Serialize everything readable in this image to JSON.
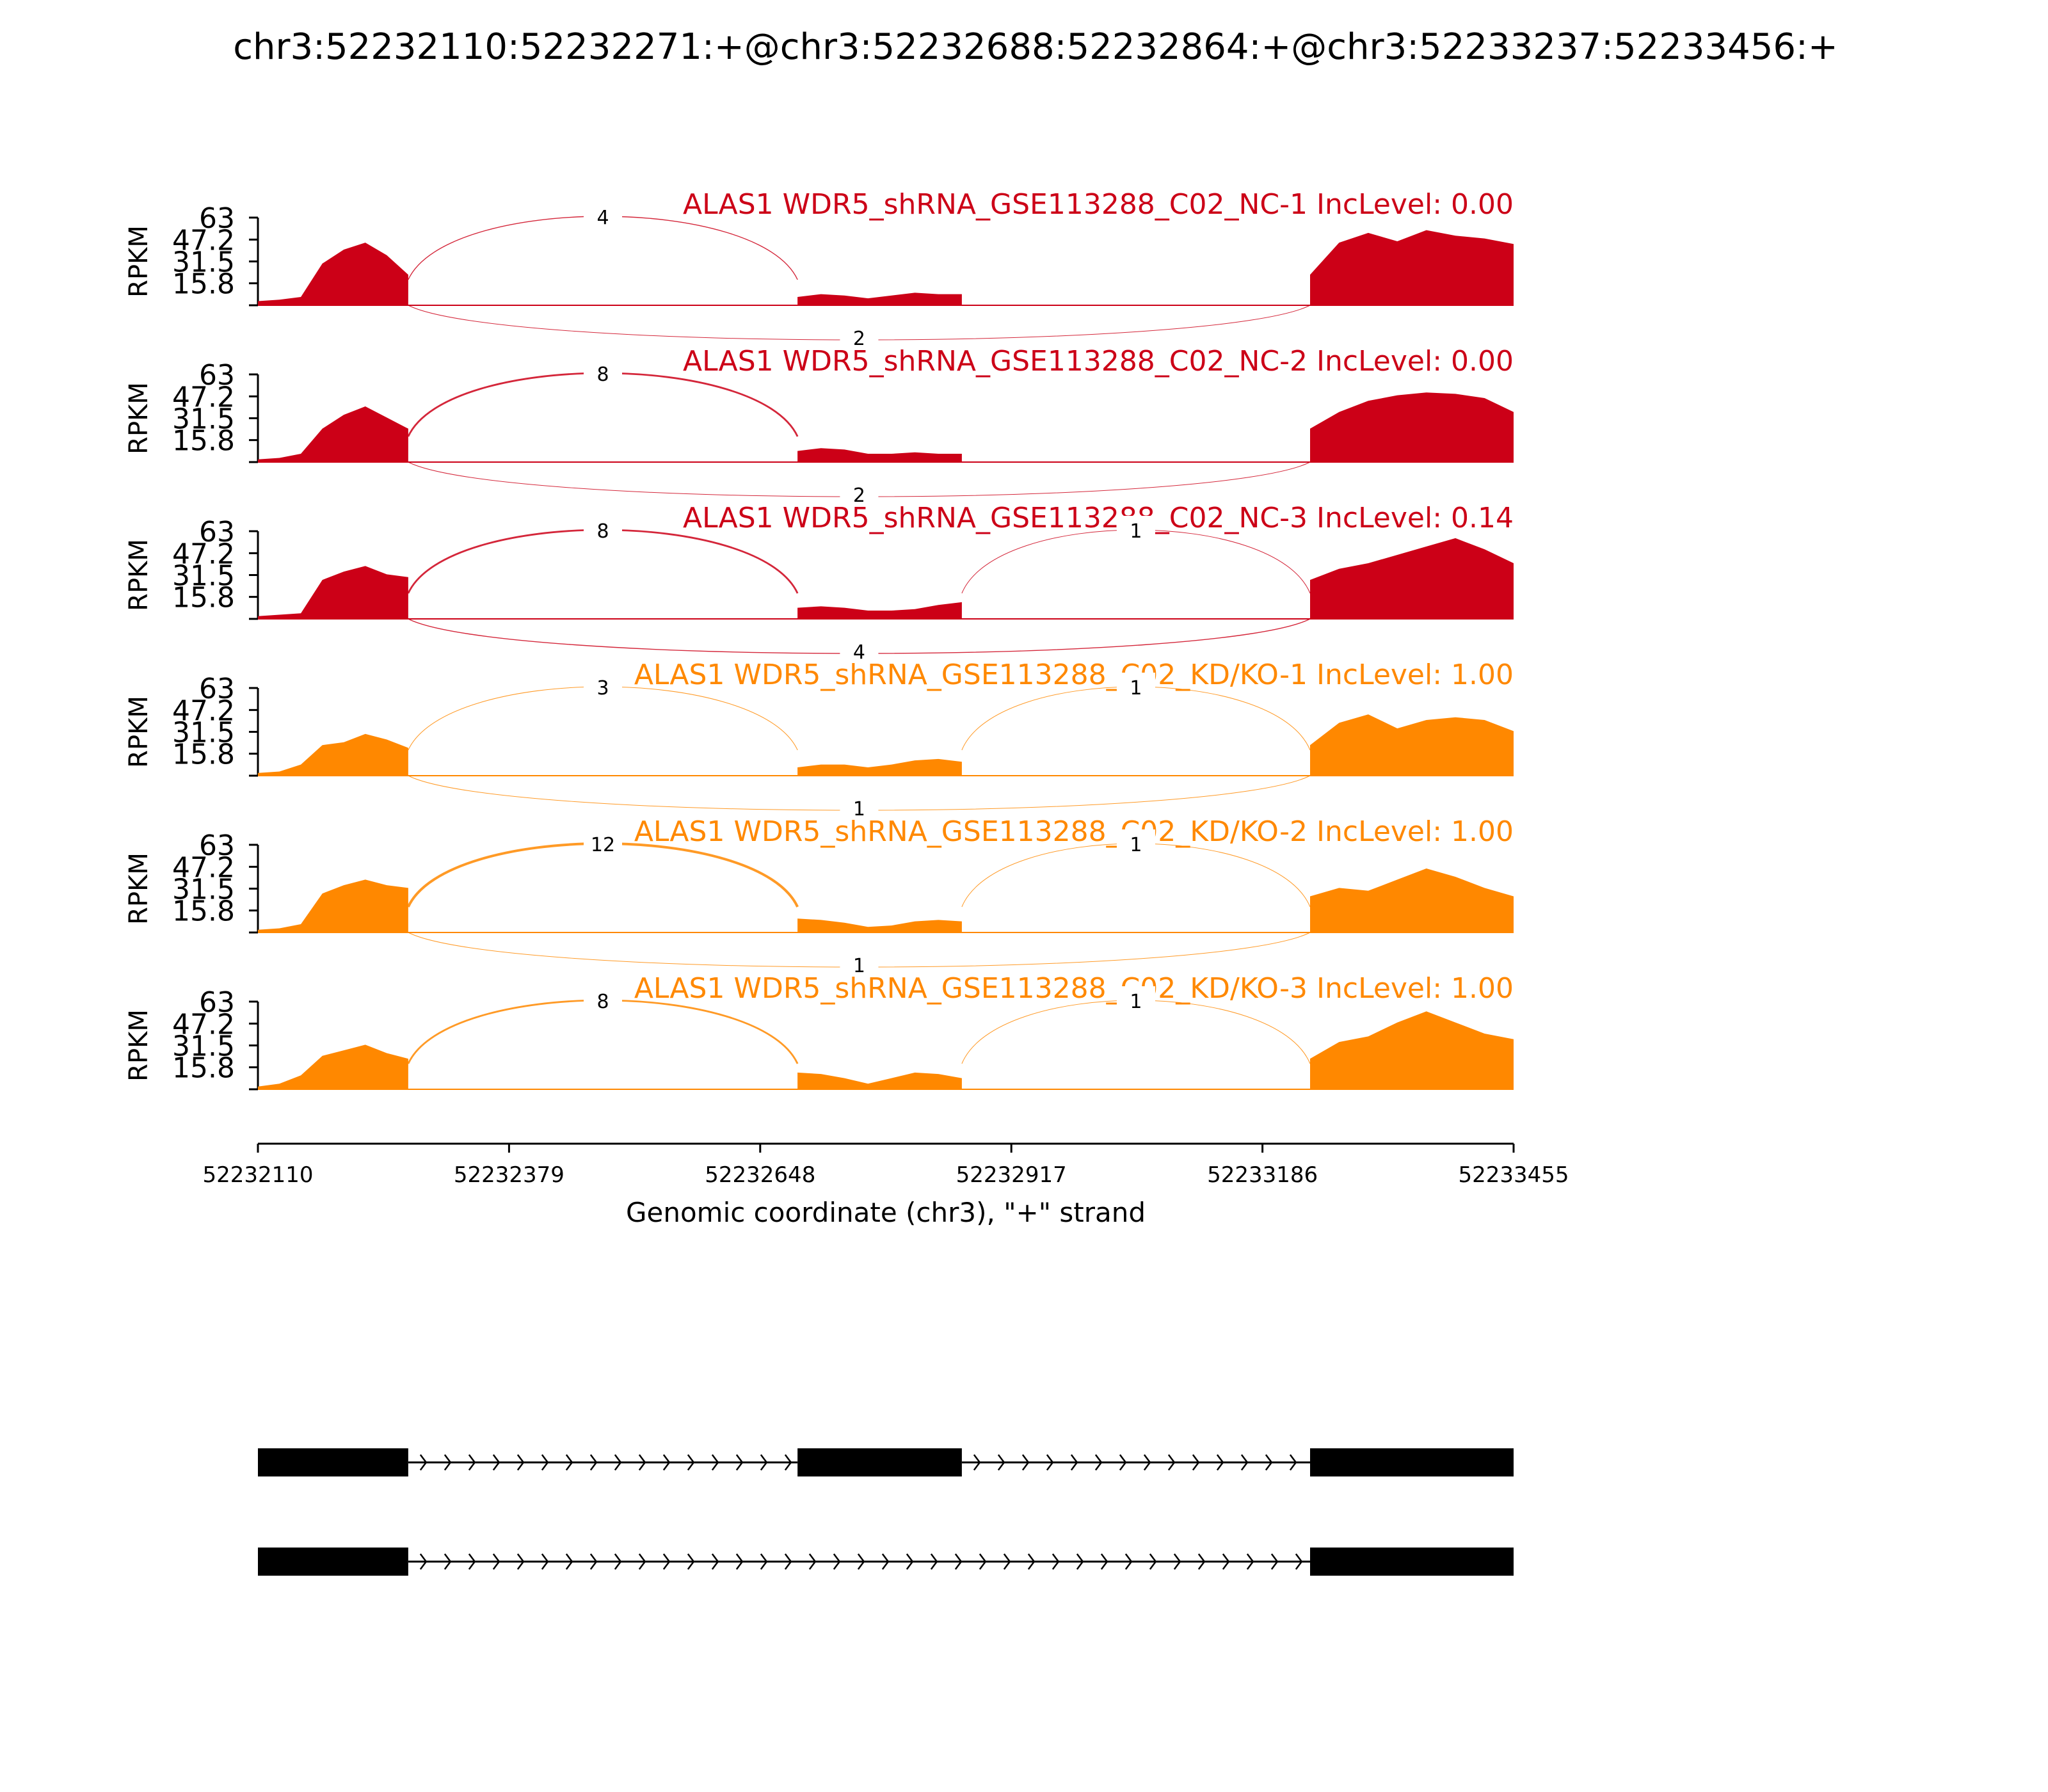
{
  "title": "chr3:52232110:52232271:+@chr3:52232688:52232864:+@chr3:52233237:52233456:+",
  "colors": {
    "NC": "#cc0017",
    "KD": "#ff8800",
    "axis": "#000000"
  },
  "chart_data": {
    "type": "area",
    "subtype": "sashimi plot",
    "ylabel": "RPKM",
    "ylim": [
      0,
      63
    ],
    "yticks": [
      "63",
      "47.2",
      "31.5",
      "15.8"
    ],
    "xlim": [
      52232110,
      52233455
    ],
    "xticks": [
      "52232110",
      "52232379",
      "52232648",
      "52232917",
      "52233186",
      "52233455"
    ],
    "xlabel": "Genomic coordinate (chr3), \"+\" strand",
    "exons": [
      [
        52232110,
        52232271
      ],
      [
        52232688,
        52232864
      ],
      [
        52233237,
        52233456
      ]
    ],
    "tracks": [
      {
        "label": "ALAS1 WDR5_shRNA_GSE113288_C02_NC-1 IncLevel: 0.00",
        "group": "NC",
        "exon_heights": [
          [
            3,
            4,
            6,
            30,
            40,
            45,
            36,
            22
          ],
          [
            6,
            8,
            7,
            5,
            7,
            9,
            8,
            8
          ],
          [
            22,
            45,
            52,
            46,
            54,
            50,
            48,
            44
          ]
        ],
        "junctions": [
          {
            "from": 52232271,
            "to": 52232688,
            "count": "4",
            "side": "above"
          },
          {
            "from": 52232271,
            "to": 52233237,
            "count": "2",
            "side": "below"
          }
        ]
      },
      {
        "label": "ALAS1 WDR5_shRNA_GSE113288_C02_NC-2 IncLevel: 0.00",
        "group": "NC",
        "exon_heights": [
          [
            2,
            3,
            6,
            24,
            34,
            40,
            32,
            24
          ],
          [
            8,
            10,
            9,
            6,
            6,
            7,
            6,
            6
          ],
          [
            24,
            36,
            44,
            48,
            50,
            49,
            46,
            36
          ]
        ],
        "junctions": [
          {
            "from": 52232271,
            "to": 52232688,
            "count": "8",
            "side": "above"
          },
          {
            "from": 52232271,
            "to": 52233237,
            "count": "2",
            "side": "below"
          }
        ]
      },
      {
        "label": "ALAS1 WDR5_shRNA_GSE113288_C02_NC-3 IncLevel: 0.14",
        "group": "NC",
        "exon_heights": [
          [
            2,
            3,
            4,
            28,
            34,
            38,
            32,
            30
          ],
          [
            8,
            9,
            8,
            6,
            6,
            7,
            10,
            12
          ],
          [
            28,
            36,
            40,
            46,
            52,
            58,
            50,
            40
          ]
        ],
        "junctions": [
          {
            "from": 52232271,
            "to": 52232688,
            "count": "8",
            "side": "above"
          },
          {
            "from": 52232864,
            "to": 52233237,
            "count": "1",
            "side": "above"
          },
          {
            "from": 52232271,
            "to": 52233237,
            "count": "4",
            "side": "below"
          }
        ]
      },
      {
        "label": "ALAS1 WDR5_shRNA_GSE113288_C02_KD/KO-1 IncLevel: 1.00",
        "group": "KD",
        "exon_heights": [
          [
            2,
            3,
            8,
            22,
            24,
            30,
            26,
            20
          ],
          [
            6,
            8,
            8,
            6,
            8,
            11,
            12,
            10
          ],
          [
            22,
            38,
            44,
            34,
            40,
            42,
            40,
            32
          ]
        ],
        "junctions": [
          {
            "from": 52232271,
            "to": 52232688,
            "count": "3",
            "side": "above"
          },
          {
            "from": 52232864,
            "to": 52233237,
            "count": "1",
            "side": "above"
          },
          {
            "from": 52232271,
            "to": 52233237,
            "count": "1",
            "side": "below"
          }
        ]
      },
      {
        "label": "ALAS1 WDR5_shRNA_GSE113288_C02_KD/KO-2 IncLevel: 1.00",
        "group": "KD",
        "exon_heights": [
          [
            2,
            3,
            6,
            28,
            34,
            38,
            34,
            32
          ],
          [
            10,
            9,
            7,
            4,
            5,
            8,
            9,
            8
          ],
          [
            26,
            32,
            30,
            38,
            46,
            40,
            32,
            26
          ]
        ],
        "junctions": [
          {
            "from": 52232271,
            "to": 52232688,
            "count": "12",
            "side": "above"
          },
          {
            "from": 52232864,
            "to": 52233237,
            "count": "1",
            "side": "above"
          },
          {
            "from": 52232271,
            "to": 52233237,
            "count": "1",
            "side": "below"
          }
        ]
      },
      {
        "label": "ALAS1 WDR5_shRNA_GSE113288_C02_KD/KO-3 IncLevel: 1.00",
        "group": "KD",
        "exon_heights": [
          [
            2,
            4,
            10,
            24,
            28,
            32,
            26,
            22
          ],
          [
            12,
            11,
            8,
            4,
            8,
            12,
            11,
            8
          ],
          [
            22,
            34,
            38,
            48,
            56,
            48,
            40,
            36
          ]
        ],
        "junctions": [
          {
            "from": 52232271,
            "to": 52232688,
            "count": "8",
            "side": "above"
          },
          {
            "from": 52232864,
            "to": 52233237,
            "count": "1",
            "side": "above"
          }
        ]
      }
    ],
    "isoforms": [
      {
        "exons": [
          [
            52232110,
            52232271
          ],
          [
            52232688,
            52232864
          ],
          [
            52233237,
            52233456
          ]
        ]
      },
      {
        "exons": [
          [
            52232110,
            52232271
          ],
          [
            52233237,
            52233456
          ]
        ]
      }
    ]
  }
}
